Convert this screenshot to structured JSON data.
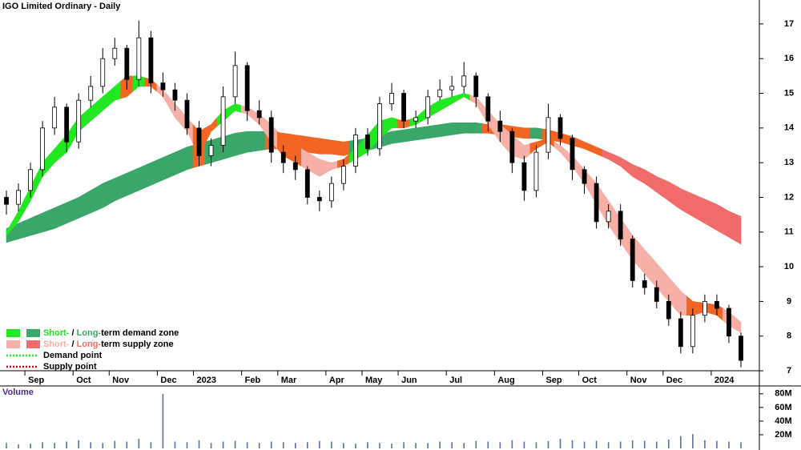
{
  "chart_data": [
    {
      "type": "candlestick",
      "title": "IGO Limited Ordinary - Daily",
      "categories": [
        null,
        null,
        "Sep",
        null,
        null,
        null,
        "Oct",
        null,
        null,
        "Nov",
        null,
        null,
        null,
        "Dec",
        null,
        null,
        "2023",
        null,
        null,
        null,
        "Feb",
        null,
        null,
        "Mar",
        null,
        null,
        null,
        "Apr",
        null,
        null,
        "May",
        null,
        null,
        "Jun",
        null,
        null,
        null,
        "Jul",
        null,
        null,
        null,
        "Aug",
        null,
        null,
        null,
        "Sep",
        null,
        null,
        "Oct",
        null,
        null,
        null,
        "Nov",
        null,
        null,
        "Dec",
        null,
        null,
        null,
        "2024",
        null,
        null
      ],
      "open": [
        12.0,
        11.8,
        12.2,
        12.8,
        14.0,
        14.6,
        13.6,
        14.8,
        15.2,
        16.0,
        16.3,
        15.4,
        16.6,
        15.3,
        15.1,
        14.8,
        14.0,
        13.2,
        13.5,
        14.9,
        15.8,
        14.5,
        14.3,
        13.3,
        13.0,
        12.8,
        12.0,
        11.9,
        12.4,
        12.9,
        13.8,
        13.4,
        14.7,
        15.0,
        14.2,
        14.3,
        14.9,
        15.1,
        15.2,
        15.5,
        14.9,
        14.2,
        13.9,
        13.0,
        12.2,
        13.3,
        14.3,
        13.7,
        12.8,
        12.4,
        11.3,
        11.6,
        10.8,
        9.6,
        9.4,
        9.0,
        8.5,
        7.7,
        8.6,
        9.0,
        8.8,
        8.0
      ],
      "high": [
        12.2,
        12.4,
        13.0,
        14.2,
        14.9,
        14.7,
        15.0,
        15.5,
        16.3,
        16.6,
        16.4,
        17.1,
        16.8,
        15.6,
        15.3,
        15.0,
        14.2,
        13.7,
        15.2,
        16.2,
        15.9,
        14.8,
        14.5,
        13.5,
        13.2,
        12.9,
        12.2,
        12.6,
        13.1,
        14.0,
        14.0,
        14.9,
        15.3,
        15.1,
        14.5,
        15.1,
        15.4,
        15.5,
        15.9,
        15.6,
        15.0,
        14.5,
        14.0,
        13.2,
        13.5,
        14.7,
        14.4,
        13.8,
        12.9,
        12.6,
        11.8,
        11.8,
        10.9,
        9.8,
        9.6,
        9.2,
        8.7,
        8.8,
        9.2,
        9.2,
        8.9,
        8.1
      ],
      "low": [
        11.5,
        11.6,
        12.0,
        12.6,
        13.8,
        13.3,
        13.4,
        14.6,
        15.0,
        15.8,
        15.1,
        15.2,
        15.0,
        14.9,
        14.5,
        13.8,
        12.9,
        12.9,
        13.3,
        14.7,
        14.2,
        14.1,
        13.0,
        12.7,
        12.5,
        11.8,
        11.6,
        11.7,
        12.2,
        12.7,
        13.2,
        13.2,
        14.5,
        14.0,
        14.0,
        14.1,
        14.8,
        14.9,
        15.0,
        14.6,
        13.9,
        13.6,
        12.7,
        11.9,
        12.0,
        13.1,
        13.5,
        12.5,
        12.1,
        11.1,
        11.1,
        10.6,
        9.4,
        9.2,
        8.8,
        8.3,
        7.5,
        7.5,
        8.4,
        8.6,
        7.8,
        7.1
      ],
      "close": [
        11.8,
        12.2,
        12.8,
        14.0,
        14.6,
        13.6,
        14.8,
        15.2,
        16.0,
        16.3,
        15.4,
        16.6,
        15.3,
        15.1,
        14.8,
        14.0,
        13.2,
        13.5,
        14.9,
        15.8,
        14.5,
        14.3,
        13.3,
        13.0,
        12.8,
        12.0,
        11.9,
        12.4,
        12.9,
        13.8,
        13.4,
        14.7,
        15.0,
        14.2,
        14.3,
        14.9,
        15.1,
        15.2,
        15.5,
        14.9,
        14.2,
        13.9,
        13.0,
        12.2,
        13.3,
        14.3,
        13.7,
        12.8,
        12.4,
        11.3,
        11.6,
        10.8,
        9.6,
        9.4,
        9.0,
        8.5,
        7.7,
        8.6,
        9.0,
        8.8,
        8.0,
        7.3
      ],
      "bands": [
        {
          "upper": [
            11.1,
            11.25,
            11.4,
            11.55,
            11.7,
            11.85,
            12.0,
            12.2,
            12.4,
            12.55,
            12.7,
            12.85,
            13.0,
            13.15,
            13.3,
            13.45,
            13.55,
            13.65,
            13.75,
            13.85,
            13.9,
            13.9,
            13.9,
            13.85,
            13.8,
            13.75,
            13.7,
            13.65,
            13.6,
            13.65,
            13.7,
            13.8,
            13.9,
            13.95,
            14.0,
            14.05,
            14.1,
            14.15,
            14.15,
            14.15,
            14.1,
            14.1,
            14.05,
            14.0,
            14.0,
            13.95,
            13.85,
            13.75,
            13.6,
            13.45,
            13.3,
            13.15,
            12.95,
            12.8,
            12.6,
            12.45,
            12.25,
            12.1,
            11.95,
            11.8,
            11.6,
            11.45
          ],
          "lower": [
            10.7,
            10.8,
            10.9,
            11.0,
            11.1,
            11.25,
            11.4,
            11.55,
            11.7,
            11.9,
            12.05,
            12.2,
            12.35,
            12.5,
            12.65,
            12.8,
            12.9,
            13.0,
            13.1,
            13.2,
            13.3,
            13.35,
            13.4,
            13.4,
            13.35,
            13.3,
            13.25,
            13.25,
            13.2,
            13.3,
            13.35,
            13.45,
            13.55,
            13.6,
            13.65,
            13.7,
            13.75,
            13.8,
            13.85,
            13.85,
            13.85,
            13.8,
            13.75,
            13.7,
            13.7,
            13.65,
            13.6,
            13.5,
            13.4,
            13.25,
            13.1,
            12.9,
            12.6,
            12.4,
            12.15,
            11.9,
            11.65,
            11.45,
            11.25,
            11.05,
            10.85,
            10.65
          ],
          "colors": [
            "#3aa66a",
            "#3aa66a",
            "#3aa66a",
            "#3aa66a",
            "#3aa66a",
            "#3aa66a",
            "#3aa66a",
            "#3aa66a",
            "#3aa66a",
            "#3aa66a",
            "#3aa66a",
            "#3aa66a",
            "#3aa66a",
            "#3aa66a",
            "#3aa66a",
            "#3aa66a",
            "#f26522",
            "#3aa66a",
            "#3aa66a",
            "#3aa66a",
            "#3aa66a",
            "#3aa66a",
            "#f26522",
            "#f26522",
            "#f26522",
            "#f26522",
            "#f26522",
            "#f26522",
            "#f26522",
            "#3aa66a",
            "#3aa66a",
            "#3aa66a",
            "#3aa66a",
            "#3aa66a",
            "#3aa66a",
            "#3aa66a",
            "#3aa66a",
            "#3aa66a",
            "#3aa66a",
            "#3aa66a",
            "#f26522",
            "#f26522",
            "#f26522",
            "#f26522",
            "#3aa66a",
            "#f26522",
            "#f26522",
            "#f26522",
            "#f26522",
            "#f26522",
            "#f26b6b",
            "#f26b6b",
            "#f26b6b",
            "#f26b6b",
            "#f26b6b",
            "#f26b6b",
            "#f26b6b",
            "#f26b6b",
            "#f26b6b",
            "#f26b6b",
            "#f26b6b",
            "#f26b6b"
          ]
        },
        {
          "upper": [
            11.0,
            11.6,
            12.3,
            13.0,
            13.4,
            13.8,
            14.3,
            14.6,
            14.9,
            15.2,
            15.5,
            15.5,
            15.4,
            15.1,
            14.7,
            14.3,
            13.9,
            14.1,
            14.5,
            14.7,
            14.6,
            14.4,
            14.1,
            13.7,
            13.5,
            13.3,
            13.1,
            13.0,
            13.1,
            13.4,
            13.8,
            14.2,
            14.3,
            14.2,
            14.3,
            14.6,
            14.8,
            14.9,
            15.0,
            14.9,
            14.5,
            14.1,
            13.8,
            13.5,
            13.6,
            13.7,
            13.5,
            13.2,
            12.8,
            12.4,
            11.9,
            11.4,
            10.9,
            10.5,
            10.1,
            9.7,
            9.3,
            9.0,
            8.95,
            8.9,
            8.7,
            8.4
          ],
          "lower": [
            10.9,
            11.3,
            11.9,
            12.6,
            13.0,
            13.3,
            13.9,
            14.2,
            14.5,
            14.8,
            14.9,
            15.2,
            15.2,
            14.9,
            14.3,
            13.9,
            13.2,
            13.9,
            14.2,
            14.5,
            14.4,
            14.1,
            13.6,
            13.2,
            13.0,
            12.8,
            12.6,
            12.8,
            12.9,
            13.1,
            13.3,
            13.7,
            14.0,
            14.0,
            14.1,
            14.3,
            14.5,
            14.7,
            14.9,
            14.7,
            14.1,
            13.6,
            13.2,
            13.1,
            13.4,
            13.6,
            13.3,
            12.9,
            12.4,
            11.8,
            11.2,
            10.7,
            10.2,
            9.8,
            9.4,
            9.0,
            8.6,
            8.6,
            8.7,
            8.6,
            8.3,
            8.1
          ],
          "colors": [
            "#22e822",
            "#22e822",
            "#22e822",
            "#22e822",
            "#22e822",
            "#22e822",
            "#22e822",
            "#22e822",
            "#22e822",
            "#22e822",
            "#f26522",
            "#22e822",
            "#f26522",
            "#f7b0a8",
            "#f7b0a8",
            "#f7b0a8",
            "#f26522",
            "#f26522",
            "#22e822",
            "#22e822",
            "#f7b0a8",
            "#f7b0a8",
            "#f7b0a8",
            "#f26522",
            "#f26522",
            "#f7b0a8",
            "#f7b0a8",
            "#f7b0a8",
            "#f26522",
            "#22e822",
            "#22e822",
            "#22e822",
            "#22e822",
            "#f26522",
            "#22e822",
            "#22e822",
            "#22e822",
            "#22e822",
            "#22e822",
            "#f7b0a8",
            "#f7b0a8",
            "#f7b0a8",
            "#f7b0a8",
            "#f7b0a8",
            "#f26522",
            "#f26522",
            "#f7b0a8",
            "#f7b0a8",
            "#f7b0a8",
            "#f7b0a8",
            "#f7b0a8",
            "#f7b0a8",
            "#f7b0a8",
            "#f7b0a8",
            "#f7b0a8",
            "#f7b0a8",
            "#f7b0a8",
            "#f26522",
            "#f26522",
            "#f26522",
            "#f7b0a8",
            "#f7b0a8"
          ]
        }
      ],
      "ylim": [
        6.84,
        17.69
      ],
      "yticks": [
        7,
        8,
        9,
        10,
        11,
        12,
        13,
        14,
        15,
        16,
        17
      ],
      "legend": [
        {
          "swatches": [
            "#22e822",
            "#3aa66a"
          ],
          "parts": [
            {
              "text": "Short-",
              "color": "#22e822"
            },
            {
              "text": " / ",
              "color": "#000000"
            },
            {
              "text": "Long-",
              "color": "#3aa66a"
            },
            {
              "text": "term demand zone",
              "color": "#000000"
            }
          ]
        },
        {
          "swatches": [
            "#f7b0a8",
            "#f26b6b"
          ],
          "parts": [
            {
              "text": "Short-",
              "color": "#f7b0a8"
            },
            {
              "text": " / ",
              "color": "#000000"
            },
            {
              "text": "Long-",
              "color": "#f26b6b"
            },
            {
              "text": "term supply zone",
              "color": "#000000"
            }
          ]
        },
        {
          "dash": "#22e822",
          "parts": [
            {
              "text": "Demand point",
              "color": "#000000"
            }
          ]
        },
        {
          "dash": "#e00000",
          "parts": [
            {
              "text": "Supply point",
              "color": "#000000"
            }
          ]
        }
      ]
    },
    {
      "type": "bar",
      "title": "Volume",
      "color": "#5a6fb0",
      "values": [
        8000000,
        6000000,
        7000000,
        9000000,
        8000000,
        10000000,
        12000000,
        9000000,
        8000000,
        11000000,
        10000000,
        14000000,
        9000000,
        80000000,
        10000000,
        9000000,
        12000000,
        8000000,
        10000000,
        11000000,
        9000000,
        8000000,
        10000000,
        9000000,
        8000000,
        9000000,
        11000000,
        10000000,
        8000000,
        7000000,
        9000000,
        8000000,
        7000000,
        9000000,
        8000000,
        8000000,
        10000000,
        9000000,
        8000000,
        11000000,
        10000000,
        9000000,
        12000000,
        10000000,
        9000000,
        11000000,
        14000000,
        12000000,
        10000000,
        11000000,
        9000000,
        10000000,
        12000000,
        11000000,
        10000000,
        13000000,
        18000000,
        21000000,
        12000000,
        11000000,
        10000000,
        9000000
      ],
      "ylim": [
        0,
        88000000
      ],
      "yticks": [
        {
          "value": 20000000,
          "label": "20M"
        },
        {
          "value": 40000000,
          "label": "40M"
        },
        {
          "value": 60000000,
          "label": "60M"
        },
        {
          "value": 80000000,
          "label": "80M"
        }
      ]
    }
  ]
}
